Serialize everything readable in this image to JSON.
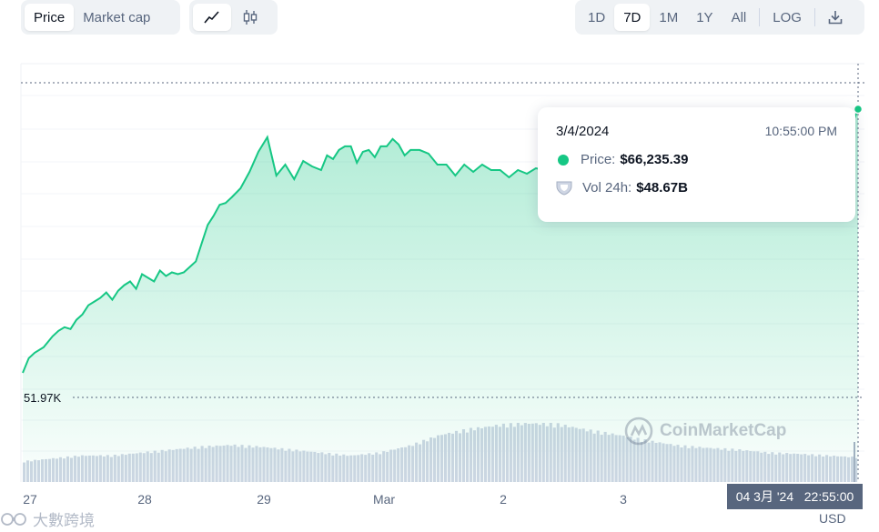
{
  "toolbar": {
    "metric_tabs": [
      "Price",
      "Market cap"
    ],
    "active_metric": "Price",
    "chart_style_icons": [
      "line-chart-icon",
      "candlestick-icon"
    ],
    "ranges": [
      "1D",
      "7D",
      "1M",
      "1Y",
      "All"
    ],
    "active_range": "7D",
    "log_label": "LOG",
    "download_icon": "download-icon"
  },
  "tooltip": {
    "date": "3/4/2024",
    "time": "10:55:00 PM",
    "price_label": "Price:",
    "price_value": "$66,235.39",
    "vol_label": "Vol 24h:",
    "vol_value": "$48.67B"
  },
  "low_label": "51.97K",
  "watermark": "CoinMarketCap",
  "timestamp_badge": "04 3月 '24   22:55:00",
  "currency": "USD",
  "brand_watermark": "大數跨境",
  "colors": {
    "line": "#16c784",
    "volume": "#cfd6e4",
    "accent": "#16c784"
  },
  "chart_data": {
    "type": "area",
    "xlabel": "",
    "ylabel": "",
    "x_ticks": [
      "27",
      "28",
      "29",
      "Mar",
      "2",
      "3"
    ],
    "grid": true,
    "x_days": [
      0,
      0.2,
      0.4,
      0.7,
      1.0,
      1.2,
      1.4,
      1.6,
      1.8,
      2.0,
      2.2,
      2.4,
      2.6,
      2.8,
      3.0,
      3.2,
      3.4,
      3.6,
      3.8,
      4.0,
      4.2,
      4.4,
      4.6,
      4.8,
      5.0,
      5.2,
      5.4,
      5.6,
      5.8,
      6.0,
      6.2,
      6.4,
      6.6,
      6.8,
      7.0,
      7.3,
      7.6,
      7.9,
      8.2,
      8.5,
      8.8,
      9.1,
      9.4,
      9.7,
      10.0,
      10.2,
      10.4,
      10.6,
      10.8,
      11.0,
      11.2,
      11.4,
      11.6,
      11.8,
      12.0,
      12.2,
      12.4,
      12.6,
      12.8,
      13.0,
      13.3,
      13.6,
      13.9,
      14.2,
      14.5,
      14.8,
      15.1,
      15.4,
      15.7,
      16.0,
      16.3,
      16.6,
      16.9,
      17.2,
      17.5,
      17.8,
      18.1,
      18.4,
      18.7,
      19.0,
      19.3,
      19.6,
      19.9,
      20.2,
      20.5,
      20.8,
      21.1,
      21.4,
      21.7,
      22.0,
      22.3,
      22.6,
      22.9,
      23.2,
      23.5,
      23.8,
      24.1,
      24.4,
      24.7,
      25.0,
      25.3,
      25.6,
      25.9,
      26.2,
      26.5,
      26.8,
      27.1,
      27.4,
      27.7,
      28.0
    ],
    "price": [
      51800,
      52600,
      52900,
      53200,
      53800,
      54100,
      54300,
      54200,
      54700,
      55000,
      55500,
      55700,
      55900,
      56200,
      55800,
      56300,
      56600,
      56800,
      56400,
      57200,
      57000,
      56800,
      57400,
      57100,
      57300,
      57200,
      57300,
      57600,
      57900,
      58900,
      59900,
      60400,
      61000,
      61100,
      61400,
      61900,
      62800,
      63900,
      64700,
      62600,
      63200,
      62400,
      63400,
      63100,
      62900,
      63700,
      63500,
      64000,
      64200,
      64200,
      63300,
      63900,
      64000,
      63600,
      64200,
      64200,
      64600,
      64300,
      63700,
      64000,
      64000,
      63800,
      63200,
      63200,
      62600,
      63200,
      62800,
      63200,
      62900,
      62900,
      62500,
      62900,
      62700,
      63000,
      62900,
      63400,
      63500,
      63200,
      63700,
      63200,
      63100,
      63100,
      63300,
      63400,
      63000,
      63600,
      63300,
      63300,
      63700,
      63400,
      63400,
      63800,
      63500,
      64100,
      63300,
      64200,
      64500,
      64700,
      64300,
      64000,
      64200,
      63900,
      64000,
      64300,
      64100,
      64500,
      64700,
      64500,
      65000,
      66235
    ],
    "volume_days": [
      0,
      1,
      2,
      3,
      4,
      5,
      6,
      7,
      8,
      9,
      10,
      11,
      12,
      13,
      14,
      15,
      16,
      17,
      18,
      19,
      20,
      21,
      22,
      23,
      24,
      25,
      26,
      27,
      28
    ],
    "volume_rel": [
      0.35,
      0.4,
      0.45,
      0.45,
      0.5,
      0.55,
      0.6,
      0.63,
      0.6,
      0.55,
      0.5,
      0.45,
      0.5,
      0.62,
      0.8,
      0.9,
      0.97,
      1.0,
      0.98,
      0.88,
      0.8,
      0.7,
      0.62,
      0.58,
      0.55,
      0.5,
      0.48,
      0.45,
      0.42
    ]
  }
}
